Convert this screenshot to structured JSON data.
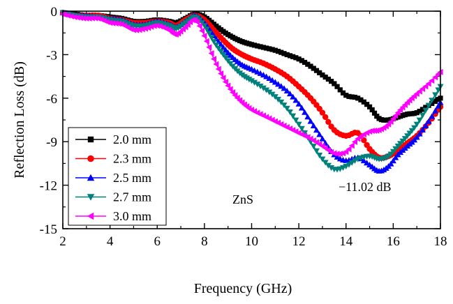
{
  "chart_data": {
    "type": "line",
    "title": "",
    "xlabel": "Frequency (GHz)",
    "ylabel": "Reflection Loss (dB)",
    "xlim": [
      2,
      18
    ],
    "ylim": [
      -15,
      0
    ],
    "xticks": [
      2,
      4,
      6,
      8,
      10,
      12,
      14,
      16,
      18
    ],
    "yticks": [
      0,
      -3,
      -6,
      -9,
      -12,
      -15
    ],
    "xtick_labels": [
      "2",
      "4",
      "6",
      "8",
      "10",
      "12",
      "14",
      "16",
      "18"
    ],
    "ytick_labels": [
      "0",
      "-3",
      "-6",
      "-9",
      "-12",
      "-15"
    ],
    "grid": false,
    "legend_position": "bottom-left",
    "annotations": [
      "ZnS",
      "−11.02 dB"
    ],
    "series": [
      {
        "name": "2.0 mm",
        "color": "#000000",
        "marker": "square",
        "x": [
          2.0,
          2.5,
          3.0,
          3.5,
          4.0,
          4.5,
          5.0,
          5.5,
          6.0,
          6.5,
          6.8,
          7.2,
          7.6,
          8.0,
          8.4,
          8.8,
          9.2,
          9.6,
          10.0,
          10.5,
          11.0,
          11.5,
          12.0,
          12.5,
          13.0,
          13.5,
          14.0,
          14.5,
          15.0,
          15.4,
          15.8,
          16.2,
          16.6,
          17.0,
          17.5,
          18.0
        ],
        "y": [
          -0.1,
          -0.2,
          -0.3,
          -0.3,
          -0.4,
          -0.5,
          -0.7,
          -0.7,
          -0.6,
          -0.7,
          -0.8,
          -0.5,
          -0.2,
          -0.4,
          -0.9,
          -1.4,
          -1.8,
          -2.1,
          -2.3,
          -2.5,
          -2.7,
          -3.0,
          -3.3,
          -3.8,
          -4.4,
          -5.0,
          -5.8,
          -6.0,
          -6.6,
          -7.4,
          -7.5,
          -7.3,
          -7.1,
          -7.0,
          -6.5,
          -6.0
        ]
      },
      {
        "name": "2.3 mm",
        "color": "#ff0000",
        "marker": "circle",
        "x": [
          2.0,
          2.5,
          3.0,
          3.5,
          4.0,
          4.5,
          5.0,
          5.5,
          6.0,
          6.5,
          6.8,
          7.2,
          7.6,
          8.0,
          8.4,
          8.8,
          9.2,
          9.6,
          10.0,
          10.5,
          11.0,
          11.5,
          12.0,
          12.5,
          13.0,
          13.5,
          14.0,
          14.5,
          15.0,
          15.4,
          15.8,
          16.2,
          16.6,
          17.0,
          17.5,
          18.0
        ],
        "y": [
          -0.1,
          -0.3,
          -0.3,
          -0.3,
          -0.5,
          -0.6,
          -0.8,
          -0.8,
          -0.7,
          -0.8,
          -1.0,
          -0.6,
          -0.3,
          -0.6,
          -1.3,
          -2.0,
          -2.6,
          -3.0,
          -3.3,
          -3.6,
          -4.0,
          -4.5,
          -5.2,
          -6.0,
          -7.0,
          -8.2,
          -8.6,
          -8.4,
          -9.5,
          -10.1,
          -10.0,
          -9.6,
          -9.1,
          -8.6,
          -7.7,
          -6.6
        ]
      },
      {
        "name": "2.5 mm",
        "color": "#0000ff",
        "marker": "triangle-up",
        "x": [
          2.0,
          2.5,
          3.0,
          3.5,
          4.0,
          4.5,
          5.0,
          5.5,
          6.0,
          6.5,
          6.8,
          7.2,
          7.6,
          8.0,
          8.4,
          8.8,
          9.2,
          9.6,
          10.0,
          10.5,
          11.0,
          11.5,
          12.0,
          12.5,
          13.0,
          13.5,
          14.0,
          14.5,
          15.0,
          15.4,
          15.8,
          16.2,
          16.6,
          17.0,
          17.5,
          18.0
        ],
        "y": [
          -0.1,
          -0.3,
          -0.3,
          -0.4,
          -0.5,
          -0.6,
          -0.9,
          -0.9,
          -0.7,
          -0.9,
          -1.1,
          -0.7,
          -0.3,
          -0.8,
          -1.7,
          -2.5,
          -3.2,
          -3.7,
          -4.0,
          -4.4,
          -4.9,
          -5.5,
          -6.4,
          -7.6,
          -8.8,
          -9.9,
          -10.3,
          -10.1,
          -10.6,
          -11.02,
          -10.7,
          -9.9,
          -9.3,
          -8.7,
          -7.6,
          -6.3
        ]
      },
      {
        "name": "2.7 mm",
        "color": "#00807a",
        "marker": "triangle-down",
        "x": [
          2.0,
          2.5,
          3.0,
          3.5,
          4.0,
          4.5,
          5.0,
          5.5,
          6.0,
          6.5,
          6.8,
          7.2,
          7.6,
          8.0,
          8.4,
          8.8,
          9.2,
          9.6,
          10.0,
          10.5,
          11.0,
          11.5,
          12.0,
          12.5,
          13.0,
          13.5,
          14.0,
          14.5,
          15.0,
          15.4,
          15.8,
          16.2,
          16.6,
          17.0,
          17.5,
          18.0
        ],
        "y": [
          -0.1,
          -0.3,
          -0.4,
          -0.4,
          -0.6,
          -0.7,
          -1.0,
          -1.0,
          -0.8,
          -1.0,
          -1.2,
          -0.8,
          -0.4,
          -1.0,
          -2.1,
          -3.0,
          -3.8,
          -4.4,
          -4.8,
          -5.3,
          -5.9,
          -6.7,
          -7.8,
          -9.0,
          -10.2,
          -10.9,
          -10.7,
          -10.2,
          -10.0,
          -10.2,
          -10.0,
          -9.3,
          -8.6,
          -7.8,
          -6.5,
          -5.2
        ]
      },
      {
        "name": "3.0 mm",
        "color": "#ff00ff",
        "marker": "triangle-left",
        "x": [
          2.0,
          2.5,
          3.0,
          3.5,
          4.0,
          4.5,
          5.0,
          5.5,
          6.0,
          6.5,
          6.8,
          7.2,
          7.6,
          8.0,
          8.4,
          8.8,
          9.2,
          9.6,
          10.0,
          10.5,
          11.0,
          11.5,
          12.0,
          12.5,
          13.0,
          13.5,
          14.0,
          14.5,
          15.0,
          15.4,
          15.8,
          16.2,
          16.6,
          17.0,
          17.5,
          18.0
        ],
        "y": [
          -0.2,
          -0.4,
          -0.5,
          -0.5,
          -0.8,
          -0.9,
          -1.3,
          -1.2,
          -1.0,
          -1.3,
          -1.6,
          -1.1,
          -0.6,
          -1.7,
          -3.3,
          -4.6,
          -5.6,
          -6.3,
          -6.8,
          -7.2,
          -7.6,
          -8.0,
          -8.4,
          -8.8,
          -9.3,
          -9.8,
          -9.7,
          -8.8,
          -8.3,
          -8.2,
          -7.8,
          -7.0,
          -6.3,
          -5.7,
          -5.0,
          -4.2
        ]
      }
    ]
  }
}
